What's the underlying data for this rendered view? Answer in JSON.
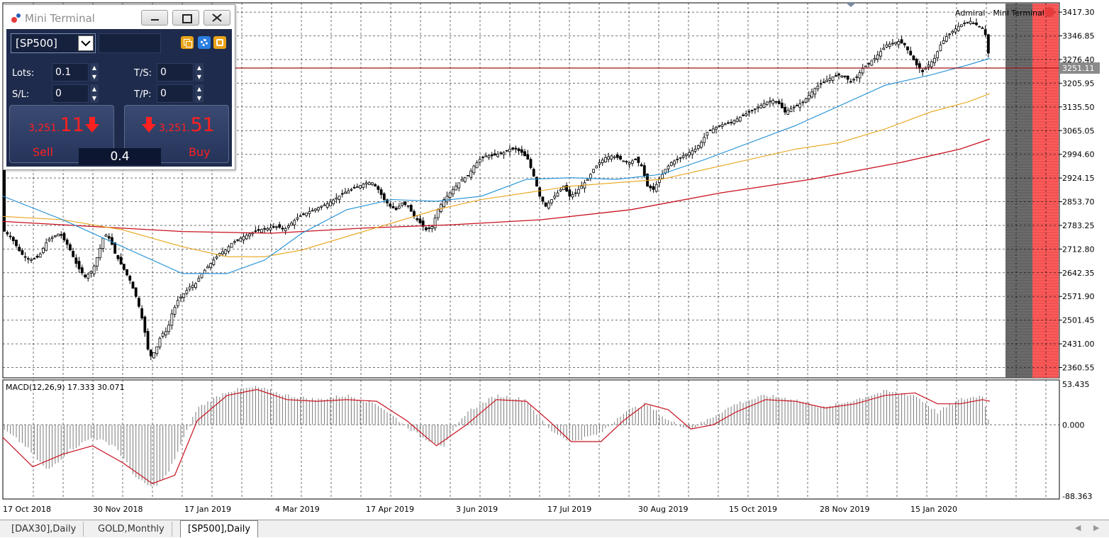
{
  "terminal": {
    "title": "Mini Terminal",
    "symbol": "[SP500]",
    "fields": {
      "lots": {
        "label": "Lots:",
        "value": "0.1"
      },
      "ts": {
        "label": "T/S:",
        "value": "0"
      },
      "sl": {
        "label": "S/L:",
        "value": "0"
      },
      "tp": {
        "label": "T/P:",
        "value": "0"
      }
    },
    "sell": {
      "price_prefix": "3,251.",
      "price_big": "11",
      "label": "Sell"
    },
    "buy": {
      "price_prefix": "3,251.",
      "price_big": "51",
      "label": "Buy"
    },
    "spread": "0.4",
    "brand_label": "Admiral - Mini Terminal"
  },
  "tabs": [
    {
      "label": "[DAX30],Daily",
      "active": false
    },
    {
      "label": "GOLD,Monthly",
      "active": false
    },
    {
      "label": "[SP500],Daily",
      "active": true
    }
  ],
  "colors": {
    "sell_red": "#ff2020",
    "ma_fast": "#1e8fd6",
    "ma_mid": "#e8a317",
    "ma_slow": "#c8101e",
    "bid_line": "#a01010",
    "macd_signal": "#c8101e",
    "macd_hist": "#7a7a7a",
    "terminal_bg": "#1e2b4c",
    "alert_zone": "#ff5a5a",
    "gray_zone": "#6b6b6b"
  },
  "chart_data": {
    "type": "candlestick",
    "symbol": "[SP500]",
    "timeframe": "Daily",
    "current_price": 3251.11,
    "current_price_label": "3251.11",
    "y_ticks": [
      "3417.30",
      "3346.85",
      "3276.40",
      "3205.95",
      "3135.50",
      "3065.05",
      "2994.60",
      "2924.15",
      "2853.70",
      "2783.25",
      "2712.80",
      "2642.35",
      "2571.90",
      "2501.45",
      "2431.00",
      "2360.55"
    ],
    "ylim": [
      2330,
      3445
    ],
    "x_labels": [
      "17 Oct 2018",
      "30 Nov 2018",
      "17 Jan 2019",
      "4 Mar 2019",
      "17 Apr 2019",
      "3 Jun 2019",
      "17 Jul 2019",
      "30 Aug 2019",
      "15 Oct 2019",
      "28 Nov 2019",
      "15 Jan 2020"
    ],
    "close_path": [
      [
        0,
        2770
      ],
      [
        6,
        2745
      ],
      [
        12,
        2700
      ],
      [
        18,
        2680
      ],
      [
        24,
        2690
      ],
      [
        30,
        2740
      ],
      [
        38,
        2760
      ],
      [
        44,
        2720
      ],
      [
        50,
        2660
      ],
      [
        55,
        2630
      ],
      [
        60,
        2650
      ],
      [
        64,
        2700
      ],
      [
        68,
        2760
      ],
      [
        72,
        2740
      ],
      [
        75,
        2700
      ],
      [
        80,
        2660
      ],
      [
        85,
        2620
      ],
      [
        90,
        2560
      ],
      [
        94,
        2490
      ],
      [
        98,
        2390
      ],
      [
        102,
        2410
      ],
      [
        106,
        2460
      ],
      [
        110,
        2470
      ],
      [
        113,
        2520
      ],
      [
        117,
        2560
      ],
      [
        121,
        2580
      ],
      [
        125,
        2600
      ],
      [
        129,
        2610
      ],
      [
        133,
        2640
      ],
      [
        137,
        2660
      ],
      [
        141,
        2680
      ],
      [
        145,
        2700
      ],
      [
        149,
        2710
      ],
      [
        153,
        2730
      ],
      [
        157,
        2740
      ],
      [
        161,
        2750
      ],
      [
        166,
        2760
      ],
      [
        172,
        2770
      ],
      [
        178,
        2775
      ],
      [
        184,
        2780
      ],
      [
        188,
        2770
      ],
      [
        193,
        2790
      ],
      [
        198,
        2810
      ],
      [
        203,
        2820
      ],
      [
        208,
        2830
      ],
      [
        213,
        2840
      ],
      [
        218,
        2850
      ],
      [
        223,
        2865
      ],
      [
        228,
        2880
      ],
      [
        233,
        2890
      ],
      [
        238,
        2900
      ],
      [
        243,
        2910
      ],
      [
        247,
        2910
      ],
      [
        251,
        2890
      ],
      [
        255,
        2860
      ],
      [
        259,
        2840
      ],
      [
        263,
        2830
      ],
      [
        267,
        2850
      ],
      [
        271,
        2840
      ],
      [
        275,
        2810
      ],
      [
        279,
        2790
      ],
      [
        283,
        2770
      ],
      [
        287,
        2780
      ],
      [
        291,
        2830
      ],
      [
        295,
        2860
      ],
      [
        299,
        2880
      ],
      [
        303,
        2900
      ],
      [
        307,
        2920
      ],
      [
        311,
        2930
      ],
      [
        315,
        2960
      ],
      [
        319,
        2980
      ],
      [
        323,
        2990
      ],
      [
        327,
        2990
      ],
      [
        331,
        2995
      ],
      [
        335,
        3000
      ],
      [
        339,
        3010
      ],
      [
        343,
        3010
      ],
      [
        347,
        3000
      ],
      [
        351,
        2980
      ],
      [
        355,
        2930
      ],
      [
        359,
        2870
      ],
      [
        363,
        2840
      ],
      [
        367,
        2860
      ],
      [
        371,
        2880
      ],
      [
        375,
        2900
      ],
      [
        379,
        2870
      ],
      [
        383,
        2880
      ],
      [
        387,
        2900
      ],
      [
        391,
        2920
      ],
      [
        395,
        2950
      ],
      [
        399,
        2970
      ],
      [
        403,
        2985
      ],
      [
        407,
        2990
      ],
      [
        411,
        2985
      ],
      [
        415,
        2975
      ],
      [
        419,
        2970
      ],
      [
        423,
        2980
      ],
      [
        427,
        2960
      ],
      [
        431,
        2900
      ],
      [
        435,
        2890
      ],
      [
        439,
        2920
      ],
      [
        443,
        2950
      ],
      [
        447,
        2970
      ],
      [
        451,
        2980
      ],
      [
        455,
        2990
      ],
      [
        459,
        3000
      ],
      [
        463,
        3010
      ],
      [
        467,
        3030
      ],
      [
        471,
        3060
      ],
      [
        475,
        3070
      ],
      [
        479,
        3080
      ],
      [
        483,
        3085
      ],
      [
        487,
        3090
      ],
      [
        491,
        3100
      ],
      [
        495,
        3110
      ],
      [
        499,
        3120
      ],
      [
        503,
        3130
      ],
      [
        507,
        3140
      ],
      [
        511,
        3150
      ],
      [
        515,
        3155
      ],
      [
        519,
        3145
      ],
      [
        523,
        3120
      ],
      [
        527,
        3130
      ],
      [
        531,
        3140
      ],
      [
        535,
        3150
      ],
      [
        539,
        3170
      ],
      [
        543,
        3190
      ],
      [
        547,
        3205
      ],
      [
        551,
        3215
      ],
      [
        555,
        3225
      ],
      [
        559,
        3230
      ],
      [
        563,
        3225
      ],
      [
        567,
        3210
      ],
      [
        571,
        3225
      ],
      [
        575,
        3250
      ],
      [
        579,
        3265
      ],
      [
        583,
        3280
      ],
      [
        587,
        3300
      ],
      [
        591,
        3320
      ],
      [
        595,
        3325
      ],
      [
        599,
        3330
      ],
      [
        603,
        3320
      ],
      [
        607,
        3290
      ],
      [
        611,
        3260
      ],
      [
        615,
        3240
      ],
      [
        619,
        3260
      ],
      [
        623,
        3280
      ],
      [
        627,
        3320
      ],
      [
        631,
        3345
      ],
      [
        635,
        3360
      ],
      [
        639,
        3375
      ],
      [
        643,
        3385
      ],
      [
        647,
        3390
      ],
      [
        651,
        3380
      ],
      [
        655,
        3370
      ],
      [
        658,
        3340
      ],
      [
        660,
        3251
      ]
    ],
    "ma_fast": [
      [
        0,
        2870
      ],
      [
        40,
        2800
      ],
      [
        80,
        2720
      ],
      [
        120,
        2640
      ],
      [
        150,
        2640
      ],
      [
        175,
        2680
      ],
      [
        200,
        2760
      ],
      [
        230,
        2830
      ],
      [
        260,
        2860
      ],
      [
        290,
        2855
      ],
      [
        320,
        2870
      ],
      [
        350,
        2920
      ],
      [
        380,
        2925
      ],
      [
        410,
        2920
      ],
      [
        440,
        2935
      ],
      [
        470,
        2980
      ],
      [
        500,
        3030
      ],
      [
        530,
        3080
      ],
      [
        560,
        3140
      ],
      [
        590,
        3200
      ],
      [
        620,
        3230
      ],
      [
        645,
        3260
      ],
      [
        660,
        3280
      ]
    ],
    "ma_mid": [
      [
        0,
        2810
      ],
      [
        40,
        2800
      ],
      [
        80,
        2770
      ],
      [
        120,
        2720
      ],
      [
        150,
        2690
      ],
      [
        175,
        2690
      ],
      [
        200,
        2710
      ],
      [
        230,
        2750
      ],
      [
        260,
        2790
      ],
      [
        290,
        2830
      ],
      [
        320,
        2860
      ],
      [
        350,
        2880
      ],
      [
        380,
        2900
      ],
      [
        410,
        2910
      ],
      [
        440,
        2920
      ],
      [
        470,
        2950
      ],
      [
        500,
        2980
      ],
      [
        530,
        3010
      ],
      [
        560,
        3030
      ],
      [
        590,
        3070
      ],
      [
        620,
        3120
      ],
      [
        645,
        3150
      ],
      [
        660,
        3175
      ]
    ],
    "ma_slow": [
      [
        0,
        2795
      ],
      [
        60,
        2780
      ],
      [
        120,
        2765
      ],
      [
        180,
        2760
      ],
      [
        240,
        2775
      ],
      [
        300,
        2785
      ],
      [
        360,
        2800
      ],
      [
        420,
        2830
      ],
      [
        480,
        2880
      ],
      [
        540,
        2920
      ],
      [
        600,
        2970
      ],
      [
        640,
        3010
      ],
      [
        660,
        3040
      ]
    ],
    "macd": {
      "label": "MACD(12,26,9) 17.333 30.071",
      "y_ticks": [
        "53.435",
        "0.000",
        "-88.363"
      ],
      "ylim": [
        -88.363,
        53.435
      ],
      "histogram": [
        [
          0,
          -5
        ],
        [
          15,
          -25
        ],
        [
          30,
          -55
        ],
        [
          45,
          -30
        ],
        [
          60,
          -15
        ],
        [
          75,
          -25
        ],
        [
          90,
          -65
        ],
        [
          100,
          -75
        ],
        [
          110,
          -60
        ],
        [
          120,
          -20
        ],
        [
          130,
          20
        ],
        [
          150,
          40
        ],
        [
          170,
          45
        ],
        [
          190,
          35
        ],
        [
          210,
          30
        ],
        [
          230,
          35
        ],
        [
          250,
          25
        ],
        [
          265,
          5
        ],
        [
          280,
          -15
        ],
        [
          295,
          -25
        ],
        [
          310,
          15
        ],
        [
          330,
          35
        ],
        [
          350,
          30
        ],
        [
          365,
          -5
        ],
        [
          380,
          -20
        ],
        [
          400,
          -10
        ],
        [
          415,
          15
        ],
        [
          430,
          25
        ],
        [
          445,
          5
        ],
        [
          460,
          -5
        ],
        [
          475,
          10
        ],
        [
          490,
          25
        ],
        [
          510,
          35
        ],
        [
          530,
          30
        ],
        [
          550,
          20
        ],
        [
          570,
          30
        ],
        [
          590,
          40
        ],
        [
          610,
          35
        ],
        [
          625,
          15
        ],
        [
          640,
          30
        ],
        [
          655,
          35
        ],
        [
          660,
          0
        ]
      ],
      "signal": [
        [
          0,
          -15
        ],
        [
          20,
          -50
        ],
        [
          40,
          -35
        ],
        [
          60,
          -25
        ],
        [
          80,
          -45
        ],
        [
          100,
          -70
        ],
        [
          115,
          -60
        ],
        [
          130,
          5
        ],
        [
          150,
          35
        ],
        [
          170,
          42
        ],
        [
          190,
          30
        ],
        [
          210,
          28
        ],
        [
          230,
          30
        ],
        [
          250,
          28
        ],
        [
          270,
          5
        ],
        [
          290,
          -25
        ],
        [
          310,
          0
        ],
        [
          330,
          30
        ],
        [
          350,
          28
        ],
        [
          365,
          5
        ],
        [
          380,
          -20
        ],
        [
          400,
          -20
        ],
        [
          415,
          5
        ],
        [
          430,
          25
        ],
        [
          445,
          18
        ],
        [
          460,
          -5
        ],
        [
          475,
          0
        ],
        [
          490,
          15
        ],
        [
          510,
          30
        ],
        [
          530,
          28
        ],
        [
          550,
          20
        ],
        [
          570,
          25
        ],
        [
          590,
          35
        ],
        [
          610,
          38
        ],
        [
          625,
          25
        ],
        [
          640,
          25
        ],
        [
          655,
          30
        ],
        [
          660,
          28
        ]
      ]
    }
  }
}
